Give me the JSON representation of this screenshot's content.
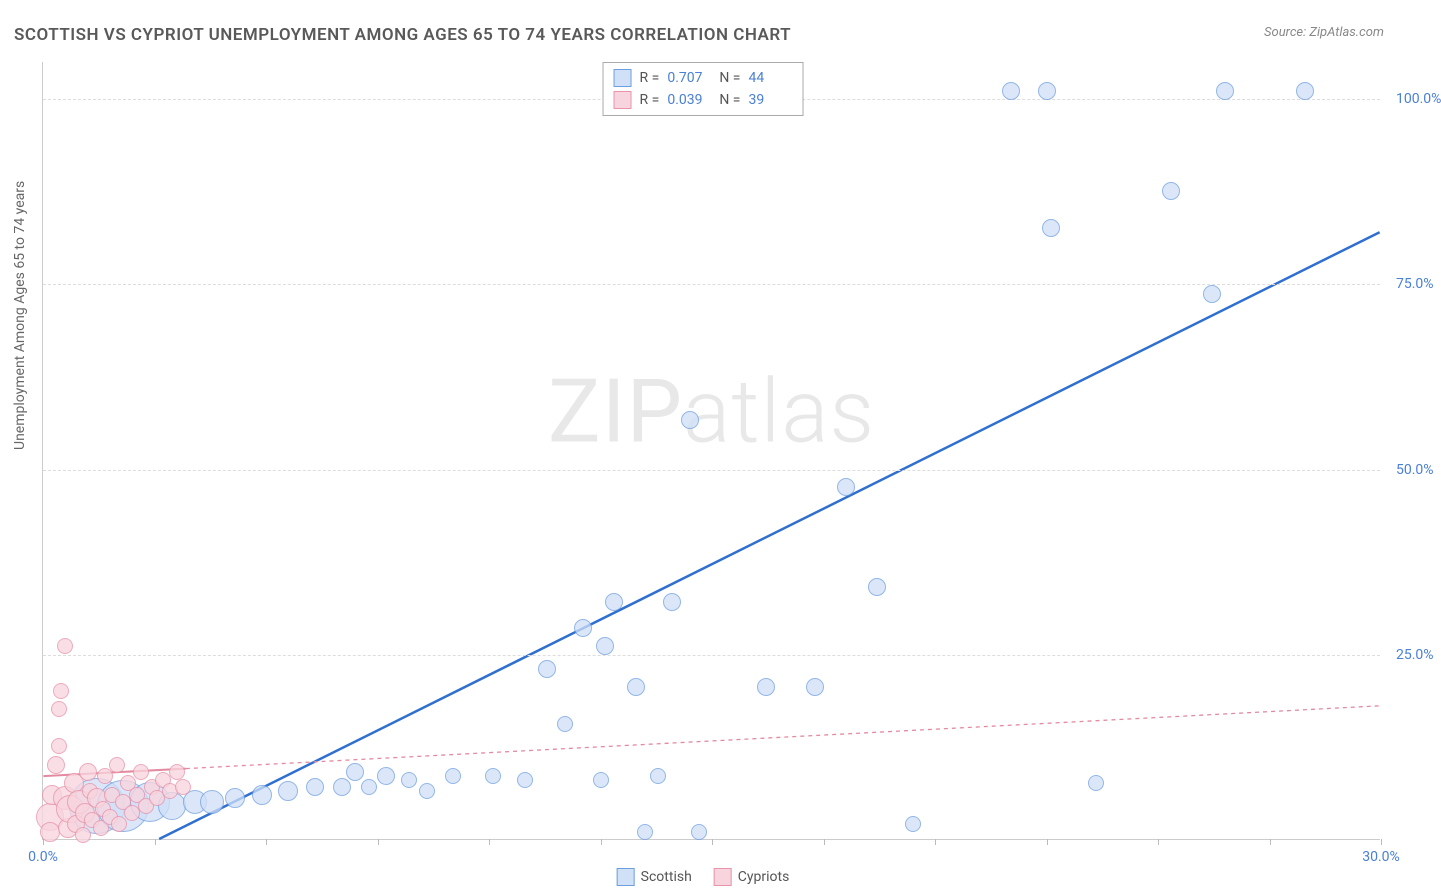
{
  "title": "SCOTTISH VS CYPRIOT UNEMPLOYMENT AMONG AGES 65 TO 74 YEARS CORRELATION CHART",
  "source": "Source: ZipAtlas.com",
  "yaxis_label": "Unemployment Among Ages 65 to 74 years",
  "watermark_a": "ZIP",
  "watermark_b": "atlas",
  "chart": {
    "type": "scatter-with-regression",
    "xlim": [
      0,
      30
    ],
    "ylim": [
      0,
      105
    ],
    "xtick_step": 2.5,
    "x_labels": [
      {
        "v": 0,
        "t": "0.0%"
      },
      {
        "v": 30,
        "t": "30.0%"
      }
    ],
    "y_labels": [
      {
        "v": 25,
        "t": "25.0%"
      },
      {
        "v": 50,
        "t": "50.0%"
      },
      {
        "v": 75,
        "t": "75.0%"
      },
      {
        "v": 100,
        "t": "100.0%"
      }
    ],
    "hgrid": [
      25,
      50,
      75,
      100
    ],
    "background_color": "#ffffff",
    "grid_color": "#dddddd",
    "axis_color": "#cccccc",
    "label_color": "#4a80d6",
    "series": [
      {
        "name": "Scottish",
        "fill": "#cfe0f7",
        "stroke": "#6f9ee0",
        "fill_opacity": 0.75,
        "trend": {
          "color": "#2f6fd0",
          "width": 2.5,
          "dash": "none",
          "x1": 2.6,
          "y1": 0,
          "x2": 30,
          "y2": 82
        },
        "R": "0.707",
        "N": "44",
        "points": [
          {
            "x": 1.2,
            "y": 4.5,
            "r": 28
          },
          {
            "x": 1.8,
            "y": 4.5,
            "r": 26
          },
          {
            "x": 2.4,
            "y": 5.0,
            "r": 20
          },
          {
            "x": 2.9,
            "y": 4.5,
            "r": 14
          },
          {
            "x": 3.4,
            "y": 5.0,
            "r": 12
          },
          {
            "x": 3.8,
            "y": 5.0,
            "r": 12
          },
          {
            "x": 4.3,
            "y": 5.5,
            "r": 10
          },
          {
            "x": 4.9,
            "y": 6.0,
            "r": 10
          },
          {
            "x": 5.5,
            "y": 6.5,
            "r": 10
          },
          {
            "x": 6.1,
            "y": 7.0,
            "r": 9
          },
          {
            "x": 6.7,
            "y": 7.0,
            "r": 9
          },
          {
            "x": 7.0,
            "y": 9.0,
            "r": 9
          },
          {
            "x": 7.3,
            "y": 7.0,
            "r": 8
          },
          {
            "x": 7.7,
            "y": 8.5,
            "r": 9
          },
          {
            "x": 8.2,
            "y": 8.0,
            "r": 8
          },
          {
            "x": 8.6,
            "y": 6.5,
            "r": 8
          },
          {
            "x": 9.2,
            "y": 8.5,
            "r": 8
          },
          {
            "x": 10.1,
            "y": 8.5,
            "r": 8
          },
          {
            "x": 10.8,
            "y": 8.0,
            "r": 8
          },
          {
            "x": 11.3,
            "y": 23.0,
            "r": 9
          },
          {
            "x": 11.7,
            "y": 15.5,
            "r": 8
          },
          {
            "x": 12.1,
            "y": 28.5,
            "r": 9
          },
          {
            "x": 12.5,
            "y": 8.0,
            "r": 8
          },
          {
            "x": 12.6,
            "y": 26.0,
            "r": 9
          },
          {
            "x": 12.8,
            "y": 32.0,
            "r": 9
          },
          {
            "x": 13.3,
            "y": 20.5,
            "r": 9
          },
          {
            "x": 13.5,
            "y": 1.0,
            "r": 8
          },
          {
            "x": 13.8,
            "y": 8.5,
            "r": 8
          },
          {
            "x": 14.1,
            "y": 32.0,
            "r": 9
          },
          {
            "x": 14.7,
            "y": 1.0,
            "r": 8
          },
          {
            "x": 14.5,
            "y": 56.5,
            "r": 9
          },
          {
            "x": 16.2,
            "y": 20.5,
            "r": 9
          },
          {
            "x": 17.3,
            "y": 20.5,
            "r": 9
          },
          {
            "x": 18.0,
            "y": 47.5,
            "r": 9
          },
          {
            "x": 18.7,
            "y": 34.0,
            "r": 9
          },
          {
            "x": 19.5,
            "y": 2.0,
            "r": 8
          },
          {
            "x": 21.7,
            "y": 101.0,
            "r": 9
          },
          {
            "x": 22.5,
            "y": 101.0,
            "r": 9
          },
          {
            "x": 22.6,
            "y": 82.5,
            "r": 9
          },
          {
            "x": 23.6,
            "y": 7.5,
            "r": 8
          },
          {
            "x": 25.3,
            "y": 87.5,
            "r": 9
          },
          {
            "x": 26.5,
            "y": 101.0,
            "r": 9
          },
          {
            "x": 26.2,
            "y": 73.5,
            "r": 9
          },
          {
            "x": 28.3,
            "y": 101.0,
            "r": 9
          }
        ]
      },
      {
        "name": "Cypriots",
        "fill": "#f8d5de",
        "stroke": "#e894ab",
        "fill_opacity": 0.78,
        "trend": {
          "color": "#e38aa0",
          "width": 1.3,
          "dash": "4 4",
          "x1": 0,
          "y1": 8.5,
          "x2": 30,
          "y2": 18
        },
        "trend_solid_until_x": 3.2,
        "R": "0.039",
        "N": "39",
        "points": [
          {
            "x": 0.15,
            "y": 3.0,
            "r": 14
          },
          {
            "x": 0.15,
            "y": 1.0,
            "r": 10
          },
          {
            "x": 0.2,
            "y": 6.0,
            "r": 10
          },
          {
            "x": 0.3,
            "y": 10.0,
            "r": 9
          },
          {
            "x": 0.35,
            "y": 12.5,
            "r": 8
          },
          {
            "x": 0.35,
            "y": 17.5,
            "r": 8
          },
          {
            "x": 0.5,
            "y": 26.0,
            "r": 8
          },
          {
            "x": 0.5,
            "y": 5.5,
            "r": 12
          },
          {
            "x": 0.55,
            "y": 1.5,
            "r": 10
          },
          {
            "x": 0.6,
            "y": 4.0,
            "r": 14
          },
          {
            "x": 0.7,
            "y": 7.5,
            "r": 10
          },
          {
            "x": 0.75,
            "y": 2.0,
            "r": 9
          },
          {
            "x": 0.8,
            "y": 5.0,
            "r": 12
          },
          {
            "x": 0.9,
            "y": 0.5,
            "r": 8
          },
          {
            "x": 0.95,
            "y": 3.5,
            "r": 10
          },
          {
            "x": 1.0,
            "y": 9.0,
            "r": 9
          },
          {
            "x": 1.05,
            "y": 6.5,
            "r": 8
          },
          {
            "x": 1.1,
            "y": 2.5,
            "r": 8
          },
          {
            "x": 1.2,
            "y": 5.5,
            "r": 10
          },
          {
            "x": 1.3,
            "y": 1.5,
            "r": 8
          },
          {
            "x": 1.35,
            "y": 4.0,
            "r": 8
          },
          {
            "x": 1.4,
            "y": 8.5,
            "r": 8
          },
          {
            "x": 1.5,
            "y": 3.0,
            "r": 8
          },
          {
            "x": 1.55,
            "y": 6.0,
            "r": 8
          },
          {
            "x": 1.65,
            "y": 10.0,
            "r": 8
          },
          {
            "x": 1.7,
            "y": 2.0,
            "r": 8
          },
          {
            "x": 1.8,
            "y": 5.0,
            "r": 8
          },
          {
            "x": 1.9,
            "y": 7.5,
            "r": 8
          },
          {
            "x": 2.0,
            "y": 3.5,
            "r": 8
          },
          {
            "x": 2.1,
            "y": 6.0,
            "r": 8
          },
          {
            "x": 2.2,
            "y": 9.0,
            "r": 8
          },
          {
            "x": 2.3,
            "y": 4.5,
            "r": 8
          },
          {
            "x": 2.45,
            "y": 7.0,
            "r": 8
          },
          {
            "x": 2.55,
            "y": 5.5,
            "r": 8
          },
          {
            "x": 2.7,
            "y": 8.0,
            "r": 8
          },
          {
            "x": 2.85,
            "y": 6.5,
            "r": 8
          },
          {
            "x": 3.0,
            "y": 9.0,
            "r": 8
          },
          {
            "x": 3.15,
            "y": 7.0,
            "r": 8
          },
          {
            "x": 0.4,
            "y": 20.0,
            "r": 8
          }
        ]
      }
    ]
  },
  "legend": {
    "items": [
      "Scottish",
      "Cypriots"
    ]
  }
}
